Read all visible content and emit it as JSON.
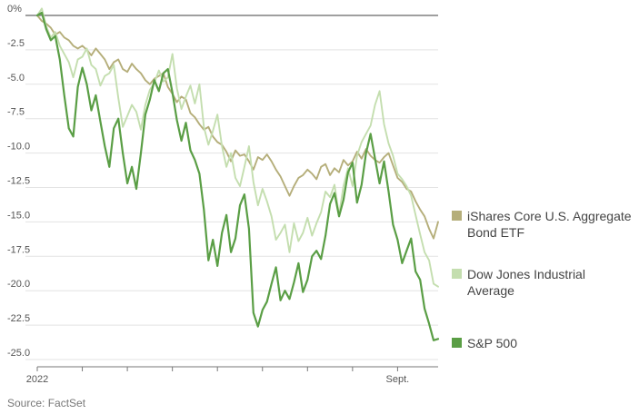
{
  "source": "Source: FactSet",
  "chart_data": {
    "type": "line",
    "title": "",
    "xlabel": "",
    "ylabel": "",
    "ylim": [
      -25,
      0
    ],
    "y_ticks": [
      0,
      -2.5,
      -5.0,
      -7.5,
      -10.0,
      -12.5,
      -15.0,
      -17.5,
      -20.0,
      -22.5,
      -25.0
    ],
    "y_tick_labels": [
      "0%",
      "-2.5",
      "-5.0",
      "-7.5",
      "-10.0",
      "-12.5",
      "-15.0",
      "-17.5",
      "-20.0",
      "-22.5",
      "-25.0"
    ],
    "x_ticks": [
      0,
      10,
      20,
      30,
      40,
      50,
      60,
      70,
      80
    ],
    "x_tick_labels": [
      "2022",
      "",
      "",
      "",
      "",
      "",
      "",
      "",
      "Sept."
    ],
    "x_range": [
      0,
      89
    ],
    "grid": true,
    "legend_position": "right",
    "series": [
      {
        "name": "iShares Core U.S. Aggregate Bond ETF",
        "color": "#b5ae7a",
        "values": [
          0,
          -0.4,
          -0.6,
          -0.9,
          -1.4,
          -1.2,
          -1.6,
          -1.8,
          -2.2,
          -2.4,
          -2.2,
          -2.5,
          -2.9,
          -2.4,
          -2.8,
          -3.2,
          -3.9,
          -3.4,
          -3.2,
          -3.9,
          -4.1,
          -3.5,
          -3.9,
          -4.2,
          -4.7,
          -5.0,
          -4.6,
          -4.4,
          -4.2,
          -5.2,
          -5.7,
          -6.3,
          -5.9,
          -6.1,
          -7.1,
          -7.4,
          -7.9,
          -8.3,
          -8.1,
          -8.8,
          -9.2,
          -9.4,
          -9.9,
          -10.6,
          -9.8,
          -10.2,
          -10.1,
          -10.6,
          -11.2,
          -10.3,
          -10.5,
          -10.1,
          -10.6,
          -11.2,
          -11.7,
          -12.4,
          -13.1,
          -12.4,
          -11.8,
          -11.6,
          -11.2,
          -11.5,
          -11.9,
          -11.0,
          -10.8,
          -11.6,
          -11.1,
          -11.4,
          -10.5,
          -10.9,
          -10.6,
          -9.9,
          -10.4,
          -9.7,
          -10.2,
          -10.5,
          -10.7,
          -10.3,
          -10.0,
          -10.9,
          -11.8,
          -12.1,
          -12.6,
          -12.8,
          -13.5,
          -14.1,
          -14.6,
          -15.5,
          -16.2,
          -15.0
        ]
      },
      {
        "name": "Dow Jones Industrial Average",
        "color": "#c4deaf",
        "values": [
          0,
          0.5,
          -0.8,
          -1.6,
          -1.2,
          -2.2,
          -2.8,
          -3.4,
          -4.5,
          -3.2,
          -3.0,
          -2.4,
          -3.6,
          -3.9,
          -5.1,
          -4.4,
          -4.2,
          -3.6,
          -6.0,
          -8.1,
          -7.3,
          -6.5,
          -7.0,
          -8.3,
          -6.5,
          -5.4,
          -4.9,
          -4.0,
          -4.8,
          -4.5,
          -2.8,
          -5.3,
          -6.8,
          -5.9,
          -5.1,
          -6.4,
          -5.0,
          -8.1,
          -9.4,
          -8.4,
          -7.2,
          -9.5,
          -11.0,
          -10.0,
          -11.8,
          -12.4,
          -11.0,
          -9.5,
          -12.1,
          -13.8,
          -12.6,
          -13.5,
          -14.6,
          -16.3,
          -15.8,
          -15.2,
          -17.2,
          -15.1,
          -16.4,
          -15.8,
          -14.7,
          -16.0,
          -15.1,
          -14.3,
          -12.8,
          -13.2,
          -12.3,
          -14.5,
          -12.4,
          -11.1,
          -12.4,
          -10.2,
          -9.2,
          -8.6,
          -8.0,
          -6.5,
          -5.5,
          -7.9,
          -9.3,
          -10.2,
          -11.5,
          -11.9,
          -12.4,
          -13.1,
          -14.5,
          -15.9,
          -17.2,
          -17.8,
          -19.5,
          -19.7
        ]
      },
      {
        "name": "S&P 500",
        "color": "#5a9e45",
        "values": [
          0,
          0.2,
          -1.0,
          -1.8,
          -1.5,
          -3.2,
          -5.8,
          -8.2,
          -8.8,
          -5.2,
          -3.8,
          -5.0,
          -6.9,
          -5.8,
          -7.7,
          -9.5,
          -11.0,
          -8.2,
          -7.5,
          -10.0,
          -12.2,
          -11.0,
          -12.6,
          -10.0,
          -7.2,
          -6.1,
          -4.7,
          -5.5,
          -4.2,
          -3.9,
          -5.6,
          -7.6,
          -9.1,
          -7.8,
          -9.8,
          -10.5,
          -11.5,
          -14.1,
          -17.8,
          -16.3,
          -18.2,
          -15.8,
          -14.5,
          -17.2,
          -16.2,
          -13.8,
          -13.0,
          -15.5,
          -21.6,
          -22.6,
          -21.4,
          -20.8,
          -19.5,
          -18.3,
          -20.7,
          -20.0,
          -20.6,
          -19.4,
          -18.0,
          -20.1,
          -19.2,
          -17.5,
          -17.1,
          -17.7,
          -16.0,
          -13.7,
          -12.9,
          -14.6,
          -13.4,
          -11.4,
          -10.7,
          -13.6,
          -12.3,
          -10.0,
          -8.6,
          -10.4,
          -12.2,
          -10.6,
          -12.8,
          -15.2,
          -16.3,
          -18.0,
          -17.1,
          -16.2,
          -18.6,
          -19.2,
          -21.3,
          -22.4,
          -23.6,
          -23.5
        ]
      }
    ]
  }
}
